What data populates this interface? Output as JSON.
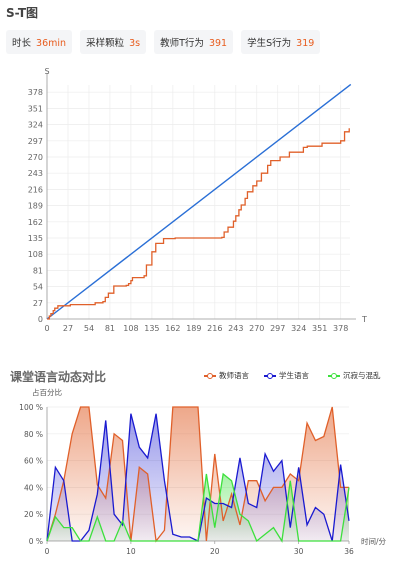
{
  "st_title": "S-T图",
  "stats": [
    {
      "label": "时长",
      "value": "36min"
    },
    {
      "label": "采样颗粒",
      "value": "3s"
    },
    {
      "label": "教师T行为",
      "value": "391"
    },
    {
      "label": "学生S行为",
      "value": "319"
    }
  ],
  "dynamic_title": "课堂语言动态对比",
  "colors": {
    "teacher": "#e0602a",
    "student": "#1a1ad0",
    "silence": "#3ce03c",
    "diagonal": "#2a6fd6"
  },
  "chart_data": [
    {
      "type": "line",
      "title": "S-T图",
      "xlabel": "T",
      "ylabel": "S",
      "xlim": [
        0,
        390
      ],
      "ylim": [
        0,
        390
      ],
      "xticks": [
        0,
        27,
        54,
        81,
        108,
        135,
        162,
        189,
        216,
        243,
        270,
        297,
        324,
        351,
        378
      ],
      "yticks": [
        0,
        27,
        54,
        81,
        108,
        135,
        162,
        189,
        216,
        243,
        270,
        297,
        324,
        351,
        378
      ],
      "grid": true,
      "series": [
        {
          "role": "diagonal",
          "x": [
            0,
            391
          ],
          "y": [
            0,
            391
          ]
        },
        {
          "role": "st",
          "x": [
            0,
            3,
            5,
            8,
            10,
            14,
            30,
            62,
            70,
            72,
            75,
            79,
            86,
            90,
            102,
            105,
            108,
            110,
            125,
            128,
            135,
            140,
            150,
            165,
            200,
            225,
            228,
            233,
            240,
            243,
            247,
            250,
            255,
            258,
            265,
            270,
            276,
            284,
            288,
            300,
            312,
            330,
            335,
            354,
            378,
            383,
            389
          ],
          "y": [
            0,
            5,
            9,
            14,
            18,
            22,
            24,
            27,
            27,
            29,
            36,
            43,
            55,
            55,
            56,
            59,
            64,
            69,
            72,
            90,
            112,
            126,
            134,
            135,
            135,
            136,
            145,
            153,
            163,
            172,
            182,
            190,
            201,
            212,
            222,
            230,
            243,
            256,
            264,
            270,
            278,
            286,
            288,
            293,
            297,
            312,
            318
          ]
        }
      ]
    },
    {
      "type": "area",
      "title": "课堂语言动态对比",
      "xlabel": "时间/分",
      "ylabel": "占百分比",
      "xlim": [
        0,
        36
      ],
      "ylim": [
        0,
        100
      ],
      "xticks": [
        0,
        10,
        20,
        30,
        36
      ],
      "yticks": [
        "0 %",
        "20 %",
        "40 %",
        "60 %",
        "80 %",
        "100 %"
      ],
      "legend_position": "top-right",
      "series": [
        {
          "name": "教师语言",
          "values": [
            0,
            20,
            45,
            80,
            100,
            100,
            42,
            32,
            80,
            75,
            0,
            55,
            50,
            0,
            8,
            100,
            100,
            100,
            100,
            0,
            65,
            15,
            35,
            12,
            45,
            45,
            30,
            40,
            40,
            50,
            45,
            88,
            75,
            78,
            100,
            40,
            40
          ]
        },
        {
          "name": "学生语言",
          "values": [
            0,
            55,
            45,
            0,
            0,
            8,
            35,
            90,
            20,
            12,
            95,
            70,
            62,
            95,
            45,
            5,
            3,
            3,
            0,
            32,
            28,
            28,
            25,
            62,
            28,
            25,
            65,
            52,
            60,
            10,
            55,
            12,
            25,
            20,
            0,
            57,
            15
          ]
        },
        {
          "name": "沉寂与混乱",
          "values": [
            0,
            18,
            10,
            10,
            0,
            0,
            18,
            0,
            0,
            15,
            0,
            0,
            0,
            0,
            0,
            0,
            0,
            0,
            0,
            50,
            10,
            50,
            45,
            20,
            15,
            0,
            5,
            10,
            0,
            45,
            0,
            0,
            0,
            0,
            0,
            0,
            40
          ]
        }
      ]
    }
  ]
}
